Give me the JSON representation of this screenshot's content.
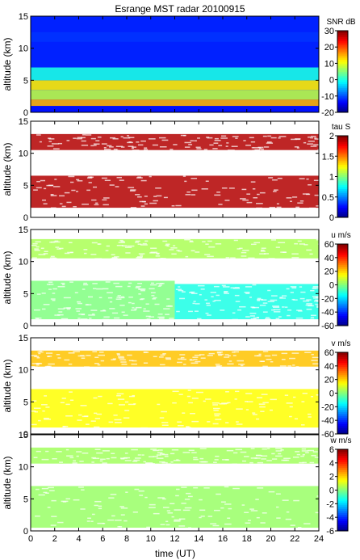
{
  "figure": {
    "title": "Esrange MST radar 20100915",
    "xlabel": "time (UT)"
  },
  "chart_data": [
    {
      "type": "heatmap",
      "title": "Esrange MST radar 20100915",
      "ylabel": "altitude (km)",
      "xlabel": "",
      "xlim": [
        0,
        24
      ],
      "ylim": [
        0,
        15
      ],
      "x_ticks": [
        "0",
        "2",
        "4",
        "6",
        "8",
        "10",
        "12",
        "14",
        "16",
        "18",
        "20",
        "22",
        "24"
      ],
      "y_ticks": [
        "0",
        "5",
        "10",
        "15"
      ],
      "colorbar": {
        "label": "SNR dB",
        "range": [
          -20,
          30
        ],
        "ticks": [
          "-20",
          "-10",
          "0",
          "10",
          "20",
          "30"
        ]
      },
      "features": [
        {
          "time": [
            0,
            24
          ],
          "altitude": [
            1.0,
            2.0
          ],
          "value": 15
        },
        {
          "time": [
            0,
            24
          ],
          "altitude": [
            2.0,
            3.5
          ],
          "value": 8
        },
        {
          "time": [
            0,
            24
          ],
          "altitude": [
            3.5,
            5.0
          ],
          "value": 12
        },
        {
          "time": [
            0,
            24
          ],
          "altitude": [
            5.0,
            7.0
          ],
          "value": 0
        },
        {
          "time": [
            0,
            24
          ],
          "altitude": [
            11.0,
            12.5
          ],
          "value": -5
        },
        {
          "time": [
            0,
            24
          ],
          "altitude": [
            7.0,
            15.0
          ],
          "value": -12
        }
      ]
    },
    {
      "type": "heatmap",
      "ylabel": "altitude (km)",
      "xlabel": "",
      "xlim": [
        0,
        24
      ],
      "ylim": [
        0,
        15
      ],
      "x_ticks": [
        "0",
        "2",
        "4",
        "6",
        "8",
        "10",
        "12",
        "14",
        "16",
        "18",
        "20",
        "22",
        "24"
      ],
      "y_ticks": [
        "0",
        "5",
        "10",
        "15"
      ],
      "colorbar": {
        "label": "tau S",
        "range": [
          0,
          2
        ],
        "ticks": [
          "0",
          "0.5",
          "1",
          "1.5",
          "2"
        ]
      },
      "features": [
        {
          "time": [
            0,
            24
          ],
          "altitude": [
            1.5,
            6.5
          ],
          "value": 1.9
        },
        {
          "time": [
            0,
            24
          ],
          "altitude": [
            10.5,
            13.0
          ],
          "value": 1.9
        }
      ]
    },
    {
      "type": "heatmap",
      "ylabel": "altitude (km)",
      "xlabel": "",
      "xlim": [
        0,
        24
      ],
      "ylim": [
        0,
        15
      ],
      "x_ticks": [
        "0",
        "2",
        "4",
        "6",
        "8",
        "10",
        "12",
        "14",
        "16",
        "18",
        "20",
        "22",
        "24"
      ],
      "y_ticks": [
        "0",
        "5",
        "10",
        "15"
      ],
      "colorbar": {
        "label": "u m/s",
        "range": [
          -60,
          60
        ],
        "ticks": [
          "-60",
          "-40",
          "-20",
          "0",
          "20",
          "40",
          "60"
        ]
      },
      "features": [
        {
          "time": [
            0,
            12
          ],
          "altitude": [
            1.0,
            7.0
          ],
          "value": 0
        },
        {
          "time": [
            12,
            24
          ],
          "altitude": [
            1.0,
            6.5
          ],
          "value": -12
        },
        {
          "time": [
            0,
            24
          ],
          "altitude": [
            10.5,
            13.5
          ],
          "value": 5
        }
      ]
    },
    {
      "type": "heatmap",
      "ylabel": "altitude (km)",
      "xlabel": "",
      "xlim": [
        0,
        24
      ],
      "ylim": [
        0,
        15
      ],
      "x_ticks": [
        "0",
        "2",
        "4",
        "6",
        "8",
        "10",
        "12",
        "14",
        "16",
        "18",
        "20",
        "22",
        "24"
      ],
      "y_ticks": [
        "0",
        "5",
        "10",
        "15"
      ],
      "colorbar": {
        "label": "v m/s",
        "range": [
          -60,
          60
        ],
        "ticks": [
          "-60",
          "-40",
          "-20",
          "0",
          "20",
          "40",
          "60"
        ]
      },
      "features": [
        {
          "time": [
            0,
            24
          ],
          "altitude": [
            1.0,
            7.0
          ],
          "value": 15
        },
        {
          "time": [
            0,
            24
          ],
          "altitude": [
            10.5,
            13.0
          ],
          "value": 22
        }
      ]
    },
    {
      "type": "heatmap",
      "ylabel": "altitude (km)",
      "xlabel": "time (UT)",
      "xlim": [
        0,
        24
      ],
      "ylim": [
        0,
        15
      ],
      "x_ticks": [
        "0",
        "2",
        "4",
        "6",
        "8",
        "10",
        "12",
        "14",
        "16",
        "18",
        "20",
        "22",
        "24"
      ],
      "y_ticks": [
        "0",
        "5",
        "10",
        "15"
      ],
      "colorbar": {
        "label": "w m/s",
        "range": [
          -6,
          6
        ],
        "ticks": [
          "-6",
          "-4",
          "-2",
          "0",
          "2",
          "4",
          "6"
        ]
      },
      "features": [
        {
          "time": [
            0,
            24
          ],
          "altitude": [
            0.5,
            7.0
          ],
          "value": 0.3
        },
        {
          "time": [
            0,
            24
          ],
          "altitude": [
            10.5,
            13.0
          ],
          "value": 0.4
        }
      ]
    }
  ]
}
